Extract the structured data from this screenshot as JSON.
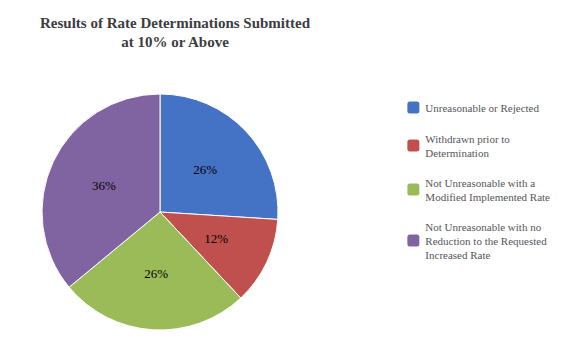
{
  "chart_data": {
    "type": "pie",
    "title": "Results of Rate Determinations Submitted\nat 10% or Above",
    "categories": [
      "Unreasonable or Rejected",
      "Withdrawn prior to \nDetermination",
      "Not Unreasonable with a \nModified Implemented Rate",
      "Not Unreasonable with no \nReduction to the Requested \nIncreased Rate"
    ],
    "values": [
      26,
      12,
      26,
      36
    ],
    "value_labels": [
      "26%",
      "12%",
      "26%",
      "36%"
    ],
    "colors": [
      "#4472C4",
      "#C0504D",
      "#9BBB59",
      "#8064A2"
    ],
    "data_labels": true,
    "legend": "right"
  }
}
